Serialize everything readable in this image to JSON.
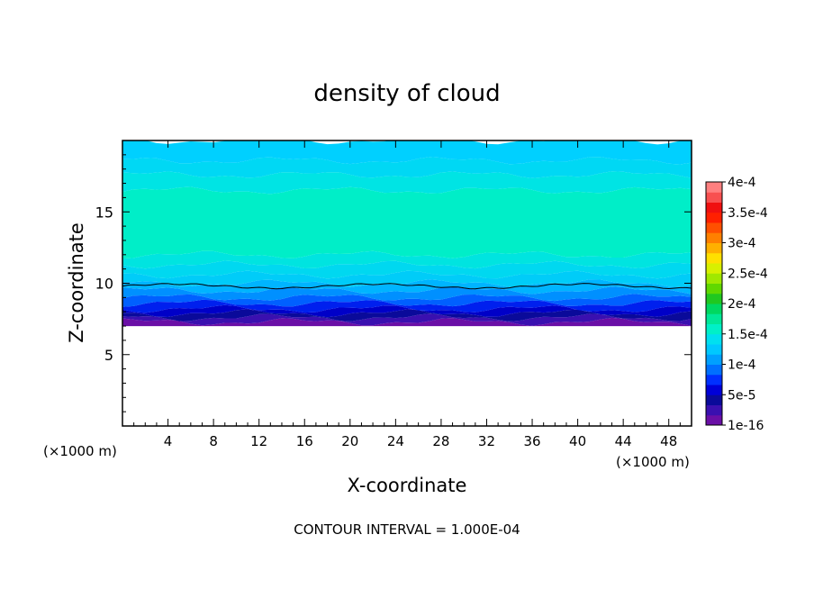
{
  "chart_data": {
    "type": "heatmap",
    "title": "density of cloud",
    "xlabel": "X-coordinate",
    "ylabel": "Z-coordinate",
    "x_unit_left": "(×1000 m)",
    "x_unit_right": "(×1000 m)",
    "footer": "CONTOUR INTERVAL = 1.000E-04",
    "xlim": [
      0,
      50
    ],
    "ylim": [
      0,
      20
    ],
    "x_ticks": [
      4,
      8,
      12,
      16,
      20,
      24,
      28,
      32,
      36,
      40,
      44,
      48
    ],
    "y_ticks": [
      5,
      10,
      15
    ],
    "colorbar": {
      "labels": [
        "1e-16",
        "5e-5",
        "1e-4",
        "1.5e-4",
        "2e-4",
        "2.5e-4",
        "3e-4",
        "3.5e-4",
        "4e-4"
      ],
      "colors": [
        "#6a0fa6",
        "#3a10b0",
        "#0a0a9a",
        "#0000d8",
        "#0030ff",
        "#0070ff",
        "#00a0ff",
        "#00c8ff",
        "#00e0f0",
        "#00f0c8",
        "#00e898",
        "#00d860",
        "#20c820",
        "#60d800",
        "#a0e800",
        "#d8f000",
        "#ffe000",
        "#ffb000",
        "#ff8000",
        "#ff5000",
        "#ff2000",
        "#f01010",
        "#f85050",
        "#ff8080"
      ]
    },
    "field": {
      "layers_z": [
        7.0,
        7.3,
        7.6,
        7.9,
        8.2,
        8.6,
        9.0,
        9.5,
        10.0,
        10.6,
        11.3,
        12.0,
        16.5,
        17.6,
        18.6,
        20.0
      ],
      "layer_colors": [
        "#6a0fa6",
        "#3a10b0",
        "#0a0a9a",
        "#0000c8",
        "#0020ee",
        "#0060ff",
        "#0090ff",
        "#00b4ff",
        "#00ccf8",
        "#00d8f0",
        "#00e4e0",
        "#00eec8",
        "#00e4e4",
        "#00d8f4",
        "#00d0ff",
        "#00d0ff"
      ],
      "contour_z": 9.8,
      "cloud_base_z": 7.0
    }
  }
}
